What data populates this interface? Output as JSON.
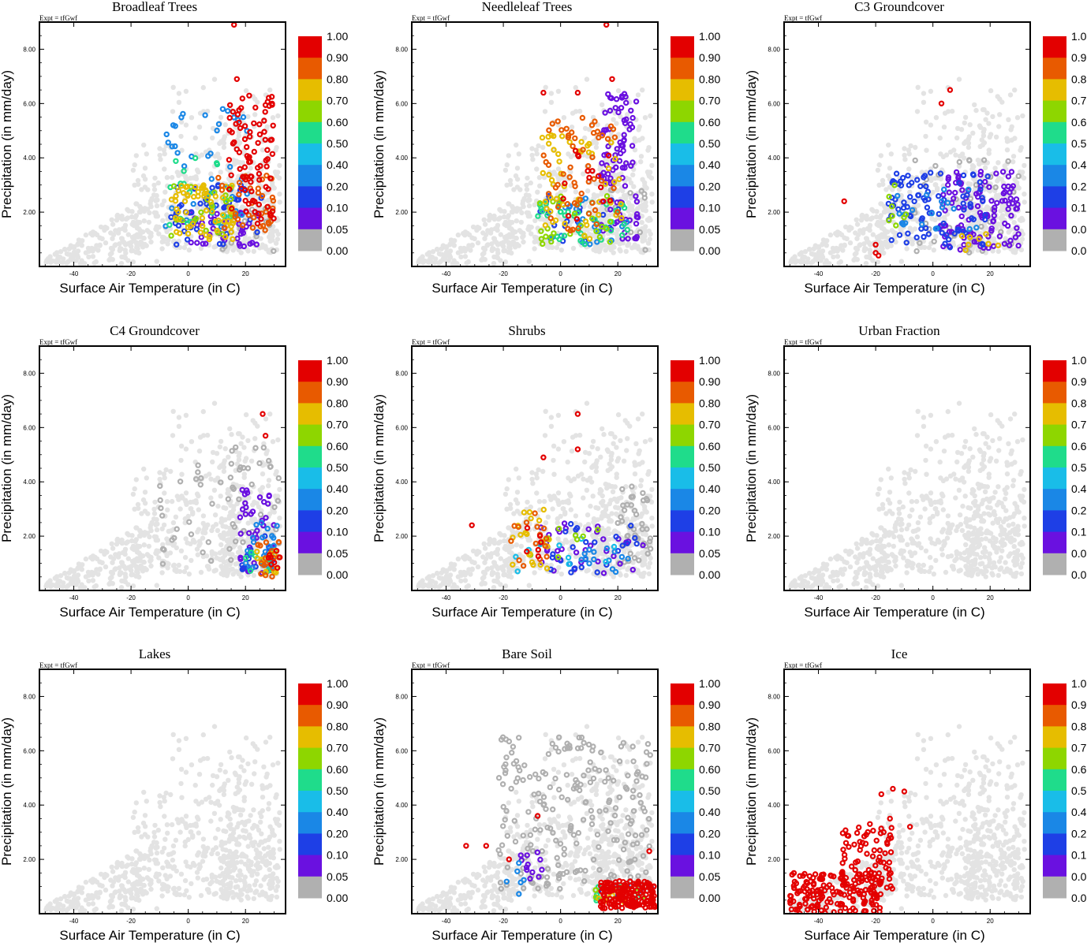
{
  "chart_data": {
    "type": "scatter",
    "layout": "3x3 grid of scatter panels",
    "experiment_label": "Expt = tfGwf",
    "xlabel": "Surface Air Temperature (in C)",
    "ylabel": "Precipitation (in mm/day)",
    "xlim": [
      -52,
      34
    ],
    "ylim": [
      0,
      9
    ],
    "xticks": [
      -40,
      -20,
      0,
      20
    ],
    "xtick_labels": [
      "-40",
      "-20",
      "0",
      "20"
    ],
    "yticks": [
      2,
      4,
      6,
      8
    ],
    "ytick_labels": [
      "2.00",
      "4.00",
      "6.00",
      "8.00"
    ],
    "colorbar": {
      "labels": [
        "1.00",
        "0.90",
        "0.80",
        "0.70",
        "0.60",
        "0.50",
        "0.40",
        "0.20",
        "0.10",
        "0.05",
        "0.00"
      ],
      "colors": [
        "#e30000",
        "#e85a00",
        "#e6bd00",
        "#8ed600",
        "#1fdc8b",
        "#19bde8",
        "#1a87e6",
        "#1e3fe6",
        "#6a11e0",
        "#b0b0b0"
      ]
    },
    "background_color": "#e3e3e3",
    "panels": [
      {
        "title": "Broadleaf Trees",
        "clusters": [
          {
            "level": 0,
            "n": 25,
            "x": [
              12,
              30
            ],
            "y": [
              0.4,
              2.2
            ]
          },
          {
            "level": 1,
            "n": 45,
            "x": [
              -2,
              25
            ],
            "y": [
              0.7,
              2.2
            ]
          },
          {
            "level": 2,
            "n": 45,
            "x": [
              -6,
              26
            ],
            "y": [
              0.8,
              3.0
            ]
          },
          {
            "level": 3,
            "n": 40,
            "x": [
              -8,
              22
            ],
            "y": [
              1.2,
              5.8
            ]
          },
          {
            "level": 5,
            "n": 20,
            "x": [
              -8,
              15
            ],
            "y": [
              1.5,
              4.5
            ]
          },
          {
            "level": 6,
            "n": 20,
            "x": [
              -8,
              16
            ],
            "y": [
              1.0,
              3.0
            ]
          },
          {
            "level": 7,
            "n": 65,
            "x": [
              -6,
              16
            ],
            "y": [
              1.0,
              3.0
            ]
          },
          {
            "level": 8,
            "n": 35,
            "x": [
              10,
              30
            ],
            "y": [
              1.2,
              3.6
            ]
          },
          {
            "level": 9,
            "n": 90,
            "x": [
              14,
              30
            ],
            "y": [
              1.5,
              6.4
            ]
          }
        ],
        "points": [
          [
            16,
            8.9
          ],
          [
            17,
            6.9
          ]
        ]
      },
      {
        "title": "Needleleaf Trees",
        "clusters": [
          {
            "level": 0,
            "n": 12,
            "x": [
              16,
              30
            ],
            "y": [
              0.6,
              3.0
            ]
          },
          {
            "level": 1,
            "n": 90,
            "x": [
              14,
              27
            ],
            "y": [
              1.0,
              6.4
            ]
          },
          {
            "level": 2,
            "n": 20,
            "x": [
              -10,
              22
            ],
            "y": [
              0.8,
              2.6
            ]
          },
          {
            "level": 3,
            "n": 20,
            "x": [
              -10,
              24
            ],
            "y": [
              0.8,
              2.6
            ]
          },
          {
            "level": 5,
            "n": 35,
            "x": [
              -8,
              24
            ],
            "y": [
              0.8,
              2.4
            ]
          },
          {
            "level": 6,
            "n": 25,
            "x": [
              -8,
              20
            ],
            "y": [
              0.8,
              2.6
            ]
          },
          {
            "level": 7,
            "n": 50,
            "x": [
              -8,
              22
            ],
            "y": [
              1.0,
              5.0
            ]
          },
          {
            "level": 8,
            "n": 55,
            "x": [
              -6,
              20
            ],
            "y": [
              1.2,
              5.5
            ]
          },
          {
            "level": 9,
            "n": 15,
            "x": [
              0,
              18
            ],
            "y": [
              1.5,
              4.5
            ]
          }
        ],
        "points": [
          [
            16,
            8.9
          ],
          [
            -6,
            6.4
          ],
          [
            6,
            6.4
          ],
          [
            18,
            6.9
          ]
        ]
      },
      {
        "title": "C3 Groundcover",
        "clusters": [
          {
            "level": 0,
            "n": 45,
            "x": [
              -10,
              30
            ],
            "y": [
              0.4,
              4.0
            ]
          },
          {
            "level": 1,
            "n": 110,
            "x": [
              2,
              30
            ],
            "y": [
              0.6,
              3.5
            ]
          },
          {
            "level": 2,
            "n": 90,
            "x": [
              -16,
              20
            ],
            "y": [
              0.7,
              3.5
            ]
          },
          {
            "level": 3,
            "n": 20,
            "x": [
              -14,
              16
            ],
            "y": [
              1.2,
              3.0
            ]
          },
          {
            "level": 6,
            "n": 8,
            "x": [
              -16,
              -6
            ],
            "y": [
              1.5,
              3.0
            ]
          },
          {
            "level": 7,
            "n": 8,
            "x": [
              10,
              24
            ],
            "y": [
              0.6,
              1.2
            ]
          }
        ],
        "points": [
          [
            -31,
            2.4
          ],
          [
            -20,
            0.5
          ],
          [
            -19,
            0.4
          ],
          [
            -20,
            0.8
          ],
          [
            6,
            6.5
          ],
          [
            3,
            6.0
          ]
        ]
      },
      {
        "title": "C4 Groundcover",
        "clusters": [
          {
            "level": 0,
            "n": 60,
            "x": [
              -10,
              32
            ],
            "y": [
              0.8,
              5.5
            ]
          },
          {
            "level": 1,
            "n": 45,
            "x": [
              18,
              30
            ],
            "y": [
              0.6,
              3.8
            ]
          },
          {
            "level": 2,
            "n": 15,
            "x": [
              18,
              30
            ],
            "y": [
              0.6,
              2.0
            ]
          },
          {
            "level": 3,
            "n": 25,
            "x": [
              20,
              31
            ],
            "y": [
              0.6,
              2.5
            ]
          },
          {
            "level": 5,
            "n": 10,
            "x": [
              20,
              30
            ],
            "y": [
              0.6,
              1.5
            ]
          },
          {
            "level": 7,
            "n": 15,
            "x": [
              24,
              31
            ],
            "y": [
              0.6,
              1.8
            ]
          },
          {
            "level": 8,
            "n": 15,
            "x": [
              24,
              32
            ],
            "y": [
              0.5,
              1.8
            ]
          },
          {
            "level": 9,
            "n": 8,
            "x": [
              28,
              32
            ],
            "y": [
              0.8,
              1.6
            ]
          }
        ],
        "points": [
          [
            27,
            5.7
          ],
          [
            26,
            6.5
          ]
        ]
      },
      {
        "title": "Shrubs",
        "clusters": [
          {
            "level": 0,
            "n": 40,
            "x": [
              20,
              32
            ],
            "y": [
              1.0,
              4.0
            ]
          },
          {
            "level": 1,
            "n": 35,
            "x": [
              -8,
              30
            ],
            "y": [
              0.6,
              2.5
            ]
          },
          {
            "level": 2,
            "n": 25,
            "x": [
              -6,
              28
            ],
            "y": [
              0.6,
              2.5
            ]
          },
          {
            "level": 3,
            "n": 15,
            "x": [
              2,
              24
            ],
            "y": [
              0.6,
              1.6
            ]
          },
          {
            "level": 4,
            "n": 10,
            "x": [
              -16,
              20
            ],
            "y": [
              0.6,
              2.0
            ]
          },
          {
            "level": 6,
            "n": 8,
            "x": [
              -14,
              18
            ],
            "y": [
              1.0,
              2.5
            ]
          },
          {
            "level": 7,
            "n": 20,
            "x": [
              -18,
              -4
            ],
            "y": [
              0.8,
              3.0
            ]
          },
          {
            "level": 8,
            "n": 15,
            "x": [
              -18,
              -4
            ],
            "y": [
              0.8,
              3.0
            ]
          },
          {
            "level": 9,
            "n": 6,
            "x": [
              -12,
              -6
            ],
            "y": [
              1.0,
              2.5
            ]
          }
        ],
        "points": [
          [
            6,
            6.5
          ],
          [
            6,
            5.2
          ],
          [
            -6,
            4.9
          ],
          [
            -31,
            2.4
          ]
        ]
      },
      {
        "title": "Urban Fraction",
        "clusters": [],
        "points": []
      },
      {
        "title": "Lakes",
        "clusters": [],
        "points": []
      },
      {
        "title": "Bare Soil",
        "clusters": [
          {
            "level": 0,
            "n": 220,
            "x": [
              -22,
              32
            ],
            "y": [
              0.9,
              6.5
            ]
          },
          {
            "level": 1,
            "n": 12,
            "x": [
              -14,
              -6
            ],
            "y": [
              1.2,
              2.8
            ]
          },
          {
            "level": 2,
            "n": 8,
            "x": [
              14,
              32
            ],
            "y": [
              0.4,
              1.2
            ]
          },
          {
            "level": 3,
            "n": 6,
            "x": [
              -20,
              -12
            ],
            "y": [
              0.5,
              2.0
            ]
          },
          {
            "level": 5,
            "n": 8,
            "x": [
              12,
              30
            ],
            "y": [
              0.4,
              1.0
            ]
          },
          {
            "level": 6,
            "n": 8,
            "x": [
              12,
              30
            ],
            "y": [
              0.4,
              1.0
            ]
          },
          {
            "level": 7,
            "n": 10,
            "x": [
              10,
              26
            ],
            "y": [
              0.4,
              1.0
            ]
          },
          {
            "level": 9,
            "n": 160,
            "x": [
              14,
              33
            ],
            "y": [
              0.2,
              1.2
            ]
          }
        ],
        "points": [
          [
            -33,
            2.5
          ],
          [
            -26,
            2.5
          ],
          [
            -8,
            3.6
          ],
          [
            -18,
            2.0
          ],
          [
            31,
            2.3
          ]
        ]
      },
      {
        "title": "Ice",
        "clusters": [
          {
            "level": 9,
            "n": 160,
            "x": [
              -50,
              -18
            ],
            "y": [
              0.0,
              1.5
            ]
          },
          {
            "level": 9,
            "n": 80,
            "x": [
              -32,
              -14
            ],
            "y": [
              0.8,
              3.2
            ]
          }
        ],
        "points": [
          [
            -14,
            4.6
          ],
          [
            -10,
            4.5
          ],
          [
            -18,
            4.4
          ],
          [
            -15,
            3.5
          ],
          [
            -22,
            3.3
          ],
          [
            -8,
            3.2
          ]
        ]
      }
    ]
  }
}
